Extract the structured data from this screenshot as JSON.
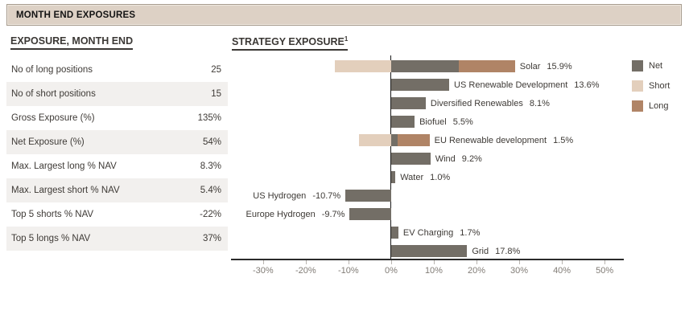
{
  "header": {
    "title": "MONTH END EXPOSURES"
  },
  "table": {
    "title": "EXPOSURE, MONTH END",
    "rows": [
      {
        "label": "No of long positions",
        "value": "25"
      },
      {
        "label": "No of short positions",
        "value": "15"
      },
      {
        "label": "Gross Exposure (%)",
        "value": "135%"
      },
      {
        "label": "Net Exposure (%)",
        "value": "54%"
      },
      {
        "label": "Max. Largest long % NAV",
        "value": "8.3%"
      },
      {
        "label": "Max. Largest short % NAV",
        "value": "5.4%"
      },
      {
        "label": "Top 5 shorts % NAV",
        "value": "-22%"
      },
      {
        "label": "Top 5 longs % NAV",
        "value": "37%"
      }
    ]
  },
  "chart": {
    "title": "STRATEGY EXPOSURE",
    "title_superscript": "1"
  },
  "chart_data": {
    "type": "bar",
    "orientation": "horizontal",
    "title": "STRATEGY EXPOSURE",
    "categories": [
      "Solar",
      "US Renewable Development",
      "Diversified Renewables",
      "Biofuel",
      "EU Renewable development",
      "Wind",
      "Water",
      "US Hydrogen",
      "Europe Hydrogen",
      "EV Charging",
      "Grid"
    ],
    "series": [
      {
        "name": "Net",
        "color": "#736e66",
        "values": [
          15.9,
          13.6,
          8.1,
          5.5,
          1.5,
          9.2,
          1.0,
          -10.7,
          -9.7,
          1.7,
          17.8
        ]
      },
      {
        "name": "Short",
        "color": "#e3cfbc",
        "values": [
          -13.1,
          0,
          0,
          0,
          -7.5,
          0,
          0,
          0,
          0,
          0,
          0
        ]
      },
      {
        "name": "Long",
        "color": "#b08466",
        "values": [
          29.0,
          null,
          null,
          null,
          9.0,
          null,
          null,
          null,
          null,
          null,
          null
        ]
      }
    ],
    "value_labels": [
      "15.9%",
      "13.6%",
      "8.1%",
      "5.5%",
      "1.5%",
      "9.2%",
      "1.0%",
      "-10.7%",
      "-9.7%",
      "1.7%",
      "17.8%"
    ],
    "xticks": [
      {
        "label": "-30%",
        "value": -30
      },
      {
        "label": "-20%",
        "value": -20
      },
      {
        "label": "-10%",
        "value": -10
      },
      {
        "label": "0%",
        "value": 0
      },
      {
        "label": "10%",
        "value": 10
      },
      {
        "label": "20%",
        "value": 20
      },
      {
        "label": "30%",
        "value": 30
      },
      {
        "label": "40%",
        "value": 40
      },
      {
        "label": "50%",
        "value": 50
      }
    ],
    "xlim": [
      -37.5,
      54.5
    ],
    "grid": false,
    "legend": [
      "Net",
      "Short",
      "Long"
    ],
    "legend_position": "right"
  }
}
